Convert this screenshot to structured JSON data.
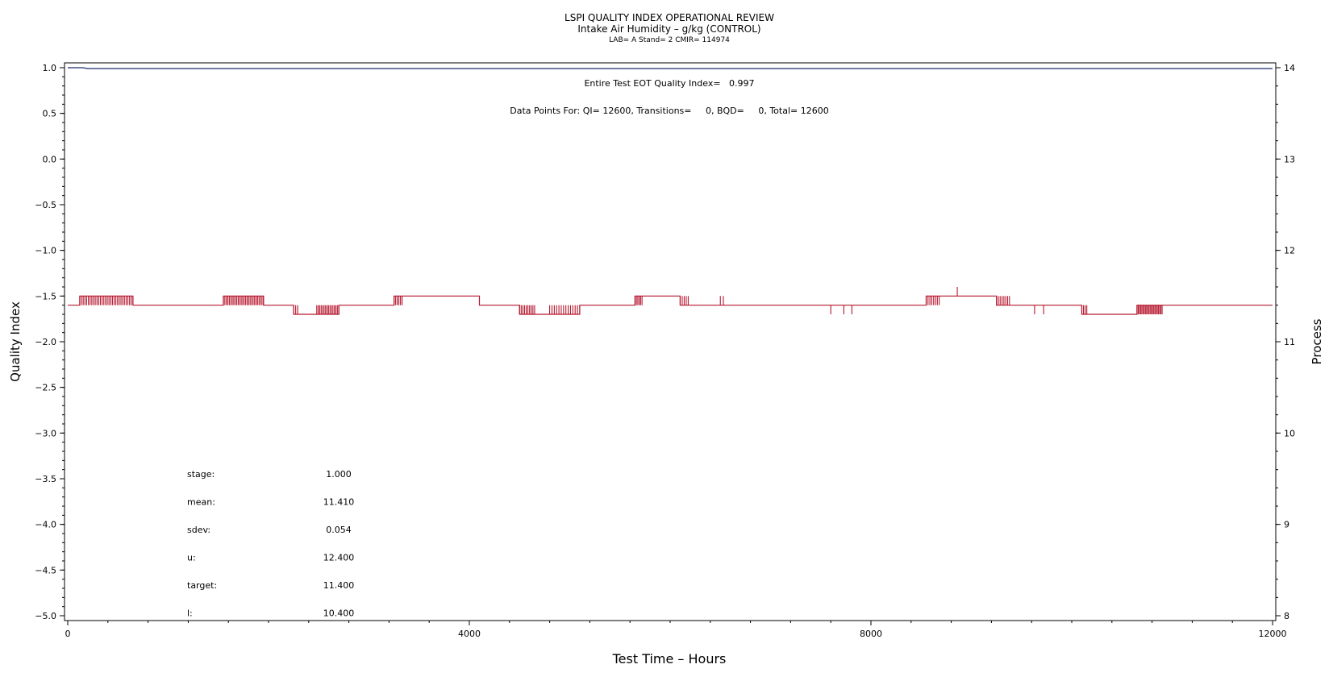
{
  "chart_data": {
    "type": "line",
    "title": "LSPI QUALITY INDEX OPERATIONAL REVIEW",
    "subtitle": "Intake Air Humidity – g/kg (CONTROL)",
    "subsubtitle": "LAB= A Stand= 2 CMIR= 114974",
    "xlabel": "Test Time – Hours",
    "ylabel": "Quality Index",
    "y2label": "Process",
    "xlim": [
      0,
      12000
    ],
    "ylim": [
      -5.0,
      1.0
    ],
    "y2lim": [
      8,
      14
    ],
    "x_ticks": [
      "0",
      "4000",
      "8000",
      "12000"
    ],
    "y_ticks": [
      "1.0",
      "0.5",
      "0.0",
      "−0.5",
      "−1.0",
      "−1.5",
      "−2.0",
      "−2.5",
      "−3.0",
      "−3.5",
      "−4.0",
      "−4.5",
      "−5.0"
    ],
    "y2_ticks": [
      "14",
      "13",
      "12",
      "11",
      "10",
      "9",
      "8"
    ],
    "annotations": {
      "eot": "Entire Test EOT Quality Index=   0.997",
      "points": "Data Points For: QI= 12600, Transitions=     0, BQD=     0, Total= 12600"
    },
    "stats": [
      {
        "label": "stage:",
        "value": "1.000"
      },
      {
        "label": "mean:",
        "value": "11.410"
      },
      {
        "label": "sdev:",
        "value": "0.054"
      },
      {
        "label": "u:",
        "value": "12.400"
      },
      {
        "label": "target:",
        "value": "11.400"
      },
      {
        "label": "l:",
        "value": "10.400"
      }
    ],
    "series": [
      {
        "axis": "left",
        "color": "#1a2a6c",
        "points": [
          [
            0,
            1.0
          ],
          [
            150,
            1.0
          ],
          [
            200,
            0.99
          ],
          [
            12000,
            0.99
          ]
        ]
      },
      {
        "axis": "right",
        "color": "#b5172f",
        "segments": [
          [
            0,
            11.4
          ],
          [
            120,
            11.4
          ],
          [
            120,
            11.5
          ],
          [
            650,
            11.5
          ],
          [
            650,
            11.4
          ],
          [
            1550,
            11.4
          ],
          [
            1550,
            11.5
          ],
          [
            1950,
            11.5
          ],
          [
            1950,
            11.4
          ],
          [
            2250,
            11.4
          ],
          [
            2250,
            11.3
          ],
          [
            2700,
            11.3
          ],
          [
            2700,
            11.4
          ],
          [
            3250,
            11.4
          ],
          [
            3250,
            11.5
          ],
          [
            4100,
            11.5
          ],
          [
            4100,
            11.4
          ],
          [
            4500,
            11.4
          ],
          [
            4500,
            11.3
          ],
          [
            5100,
            11.3
          ],
          [
            5100,
            11.4
          ],
          [
            5650,
            11.4
          ],
          [
            5650,
            11.5
          ],
          [
            6100,
            11.5
          ],
          [
            6100,
            11.4
          ],
          [
            8550,
            11.4
          ],
          [
            8550,
            11.5
          ],
          [
            9250,
            11.5
          ],
          [
            9250,
            11.4
          ],
          [
            10100,
            11.4
          ],
          [
            10100,
            11.3
          ],
          [
            10650,
            11.3
          ],
          [
            10650,
            11.4
          ],
          [
            12000,
            11.4
          ]
        ],
        "spikes": [
          {
            "x0": 120,
            "x1": 650,
            "from": 11.4,
            "to": 11.5,
            "n": 32
          },
          {
            "x0": 1550,
            "x1": 1950,
            "from": 11.4,
            "to": 11.5,
            "n": 28
          },
          {
            "x0": 2480,
            "x1": 2700,
            "from": 11.3,
            "to": 11.4,
            "n": 16
          },
          {
            "x0": 2250,
            "x1": 2290,
            "from": 11.3,
            "to": 11.4,
            "n": 3
          },
          {
            "x0": 3250,
            "x1": 3330,
            "from": 11.4,
            "to": 11.5,
            "n": 6
          },
          {
            "x0": 4500,
            "x1": 4650,
            "from": 11.3,
            "to": 11.4,
            "n": 10
          },
          {
            "x0": 4800,
            "x1": 5100,
            "from": 11.3,
            "to": 11.4,
            "n": 14
          },
          {
            "x0": 5650,
            "x1": 5720,
            "from": 11.4,
            "to": 11.5,
            "n": 6
          },
          {
            "x0": 6100,
            "x1": 6180,
            "from": 11.4,
            "to": 11.5,
            "n": 5
          },
          {
            "x0": 6500,
            "x1": 6530,
            "from": 11.4,
            "to": 11.5,
            "n": 2
          },
          {
            "x0": 7600,
            "x1": 7620,
            "from": 11.4,
            "to": 11.3,
            "n": 1
          },
          {
            "x0": 7730,
            "x1": 7810,
            "from": 11.4,
            "to": 11.3,
            "n": 2
          },
          {
            "x0": 8550,
            "x1": 8680,
            "from": 11.4,
            "to": 11.5,
            "n": 8
          },
          {
            "x0": 8860,
            "x1": 8870,
            "from": 11.5,
            "to": 11.6,
            "n": 1
          },
          {
            "x0": 9250,
            "x1": 9380,
            "from": 11.4,
            "to": 11.5,
            "n": 8
          },
          {
            "x0": 9630,
            "x1": 9720,
            "from": 11.4,
            "to": 11.3,
            "n": 2
          },
          {
            "x0": 10100,
            "x1": 10150,
            "from": 11.3,
            "to": 11.4,
            "n": 4
          },
          {
            "x0": 10650,
            "x1": 10900,
            "from": 11.3,
            "to": 11.4,
            "n": 22
          }
        ]
      }
    ],
    "grid": false,
    "legend": "none"
  }
}
